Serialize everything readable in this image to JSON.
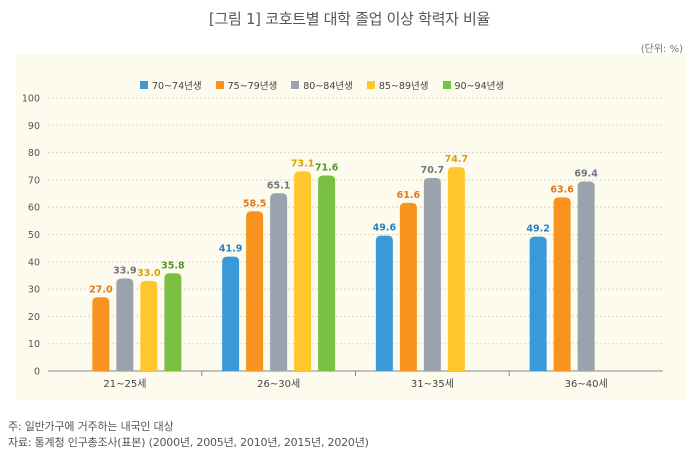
{
  "title": "[그림 1] 코호트별 대학 졸업 이상 학력자 비율",
  "unit_label": "(단위: %)",
  "footnotes": [
    "주: 일반가구에 거주하는 내국인 대상",
    "자료: 통계청 인구총조사(표본) (2000년, 2005년, 2010년, 2015년, 2020년)"
  ],
  "chart_data": {
    "type": "bar",
    "title": "[그림 1] 코호트별 대학 졸업 이상 학력자 비율",
    "xlabel": "",
    "ylabel": "",
    "ylim": [
      0,
      100
    ],
    "yticks": [
      0,
      10,
      20,
      30,
      40,
      50,
      60,
      70,
      80,
      90,
      100
    ],
    "grid": true,
    "legend_position": "top-center",
    "categories": [
      "21~25세",
      "26~30세",
      "31~35세",
      "36~40세"
    ],
    "series": [
      {
        "name": "70~74년생",
        "color": "#3a9ad9",
        "values": [
          null,
          41.9,
          49.6,
          49.2
        ]
      },
      {
        "name": "75~79년생",
        "color": "#f7931e",
        "values": [
          27.0,
          58.5,
          61.6,
          63.6
        ]
      },
      {
        "name": "80~84년생",
        "color": "#9aa3ad",
        "values": [
          33.9,
          65.1,
          70.7,
          69.4
        ]
      },
      {
        "name": "85~89년생",
        "color": "#ffc72c",
        "values": [
          33.0,
          73.1,
          74.7,
          null
        ]
      },
      {
        "name": "90~94년생",
        "color": "#7ac143",
        "values": [
          35.8,
          71.6,
          null,
          null
        ]
      }
    ],
    "label_colors": [
      "#2a7fbf",
      "#e2771a",
      "#6d7680",
      "#d9a400",
      "#4f9a2a"
    ]
  }
}
